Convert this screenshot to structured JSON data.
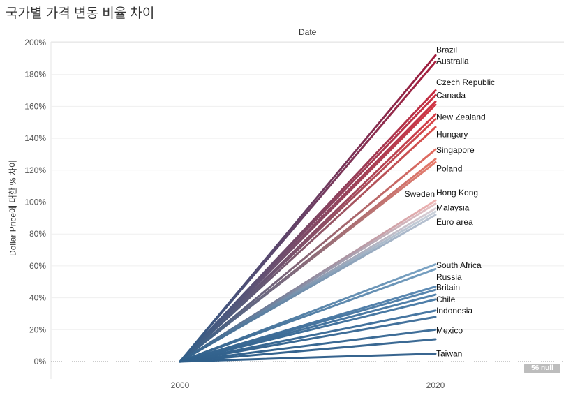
{
  "title": "국가별 가격 변동 비율 차이",
  "null_badge": "56 null",
  "chart_data": {
    "type": "line",
    "title": "국가별 가격 변동 비율 차이",
    "column_header": "Date",
    "ylabel": "Dollar Price에 대한 % 차이",
    "xlabel": "",
    "x": [
      2000,
      2020
    ],
    "ylim": [
      -10,
      205
    ],
    "yticks": [
      0,
      20,
      40,
      60,
      80,
      100,
      120,
      140,
      160,
      180,
      200
    ],
    "ytick_labels": [
      "0%",
      "20%",
      "40%",
      "60%",
      "80%",
      "100%",
      "120%",
      "140%",
      "160%",
      "180%",
      "200%"
    ],
    "xtick_labels": [
      "2000",
      "2020"
    ],
    "grid": true,
    "series": [
      {
        "name": "Brazil",
        "values": [
          0,
          192
        ],
        "color": "#a01c3c",
        "label": "Brazil"
      },
      {
        "name": "Australia",
        "values": [
          0,
          188
        ],
        "color": "#a81f3d",
        "label": "Australia"
      },
      {
        "name": "",
        "values": [
          0,
          170
        ],
        "color": "#c62b3f",
        "label": null
      },
      {
        "name": "Czech Republic",
        "values": [
          0,
          167
        ],
        "color": "#cb2f40",
        "label": "Czech Republic"
      },
      {
        "name": "",
        "values": [
          0,
          163
        ],
        "color": "#d03342",
        "label": null
      },
      {
        "name": "Canada",
        "values": [
          0,
          161
        ],
        "color": "#d33643",
        "label": "Canada"
      },
      {
        "name": "",
        "values": [
          0,
          155
        ],
        "color": "#d73d45",
        "label": null
      },
      {
        "name": "New Zealand",
        "values": [
          0,
          152
        ],
        "color": "#da4446",
        "label": "New Zealand"
      },
      {
        "name": "Hungary",
        "values": [
          0,
          147
        ],
        "color": "#dd4e4a",
        "label": "Hungary"
      },
      {
        "name": "Singapore",
        "values": [
          0,
          133
        ],
        "color": "#e46a5e",
        "label": "Singapore"
      },
      {
        "name": "",
        "values": [
          0,
          127
        ],
        "color": "#e67566",
        "label": null
      },
      {
        "name": "Poland",
        "values": [
          0,
          125
        ],
        "color": "#e77b6c",
        "label": "Poland"
      },
      {
        "name": "Sweden",
        "values": [
          0,
          101
        ],
        "color": "#f0b2b0",
        "label": "Sweden"
      },
      {
        "name": "Hong Kong",
        "values": [
          0,
          99
        ],
        "color": "#e8c2c4",
        "label": "Hong Kong"
      },
      {
        "name": "Malaysia",
        "values": [
          0,
          96
        ],
        "color": "#dcd0d5",
        "label": "Malaysia"
      },
      {
        "name": "",
        "values": [
          0,
          94
        ],
        "color": "#cdd3dc",
        "label": null
      },
      {
        "name": "Euro area",
        "values": [
          0,
          92
        ],
        "color": "#bcc5d3",
        "label": "Euro area"
      },
      {
        "name": "South Africa",
        "values": [
          0,
          61
        ],
        "color": "#7ea6c6",
        "label": "South Africa"
      },
      {
        "name": "Russia",
        "values": [
          0,
          58
        ],
        "color": "#77a0c1",
        "label": "Russia"
      },
      {
        "name": "",
        "values": [
          0,
          47
        ],
        "color": "#5f8cb5",
        "label": null
      },
      {
        "name": "Britain",
        "values": [
          0,
          45
        ],
        "color": "#5a88b1",
        "label": "Britain"
      },
      {
        "name": "",
        "values": [
          0,
          42
        ],
        "color": "#5584ae",
        "label": null
      },
      {
        "name": "Chile",
        "values": [
          0,
          39
        ],
        "color": "#5080aa",
        "label": "Chile"
      },
      {
        "name": "Indonesia",
        "values": [
          0,
          32
        ],
        "color": "#4a79a4",
        "label": "Indonesia"
      },
      {
        "name": "",
        "values": [
          0,
          28
        ],
        "color": "#47759f",
        "label": null
      },
      {
        "name": "Mexico",
        "values": [
          0,
          20
        ],
        "color": "#41709a",
        "label": "Mexico"
      },
      {
        "name": "",
        "values": [
          0,
          14
        ],
        "color": "#3d6b95",
        "label": null
      },
      {
        "name": "Taiwan",
        "values": [
          0,
          5
        ],
        "color": "#3a6690",
        "label": "Taiwan"
      }
    ],
    "label_positions": [
      {
        "name": "Brazil",
        "y": 195.5,
        "side": "right"
      },
      {
        "name": "Australia",
        "y": 188.5,
        "side": "right"
      },
      {
        "name": "Czech Republic",
        "y": 175,
        "side": "right"
      },
      {
        "name": "Canada",
        "y": 167,
        "side": "right"
      },
      {
        "name": "New Zealand",
        "y": 153.5,
        "side": "right"
      },
      {
        "name": "Hungary",
        "y": 142.5,
        "side": "right"
      },
      {
        "name": "Singapore",
        "y": 132.5,
        "side": "right"
      },
      {
        "name": "Poland",
        "y": 121,
        "side": "right"
      },
      {
        "name": "Sweden",
        "y": 105,
        "side": "left"
      },
      {
        "name": "Hong Kong",
        "y": 106,
        "side": "right"
      },
      {
        "name": "Malaysia",
        "y": 96.5,
        "side": "right"
      },
      {
        "name": "Euro area",
        "y": 87.5,
        "side": "right"
      },
      {
        "name": "South Africa",
        "y": 60.5,
        "side": "right"
      },
      {
        "name": "Russia",
        "y": 53,
        "side": "right"
      },
      {
        "name": "Britain",
        "y": 46.5,
        "side": "right"
      },
      {
        "name": "Chile",
        "y": 39,
        "side": "right"
      },
      {
        "name": "Indonesia",
        "y": 32,
        "side": "right"
      },
      {
        "name": "Mexico",
        "y": 19.5,
        "side": "right"
      },
      {
        "name": "Taiwan",
        "y": 5,
        "side": "right"
      }
    ]
  }
}
